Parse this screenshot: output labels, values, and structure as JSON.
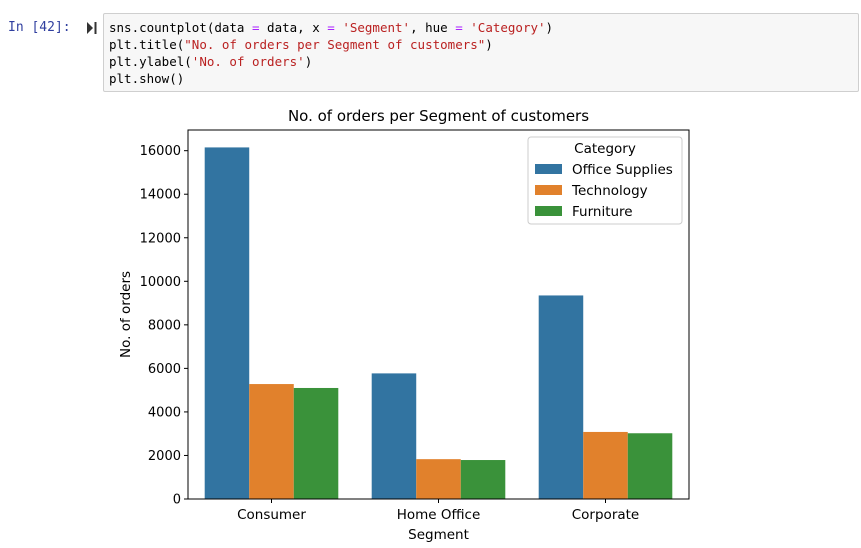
{
  "cell": {
    "prompt": "In [42]:",
    "code_lines": [
      [
        {
          "t": "sns.countplot(data "
        },
        {
          "t": "=",
          "c": "op"
        },
        {
          "t": " data, x "
        },
        {
          "t": "=",
          "c": "op"
        },
        {
          "t": " "
        },
        {
          "t": "'Segment'",
          "c": "str"
        },
        {
          "t": ", hue "
        },
        {
          "t": "=",
          "c": "op"
        },
        {
          "t": " "
        },
        {
          "t": "'Category'",
          "c": "str"
        },
        {
          "t": ")"
        }
      ],
      [
        {
          "t": "plt.title("
        },
        {
          "t": "\"No. of orders per Segment of customers\"",
          "c": "str"
        },
        {
          "t": ")"
        }
      ],
      [
        {
          "t": "plt.ylabel("
        },
        {
          "t": "'No. of orders'",
          "c": "str"
        },
        {
          "t": ")"
        }
      ],
      [
        {
          "t": "plt.show()"
        }
      ]
    ]
  },
  "chart_data": {
    "type": "bar",
    "title": "No. of orders per Segment of customers",
    "xlabel": "Segment",
    "ylabel": "No. of orders",
    "categories": [
      "Consumer",
      "Home Office",
      "Corporate"
    ],
    "series": [
      {
        "name": "Office Supplies",
        "color": "#3274a1",
        "values": [
          16150,
          5770,
          9350
        ]
      },
      {
        "name": "Technology",
        "color": "#e1812c",
        "values": [
          5280,
          1830,
          3080
        ]
      },
      {
        "name": "Furniture",
        "color": "#3a923a",
        "values": [
          5100,
          1790,
          3020
        ]
      }
    ],
    "yticks": [
      0,
      2000,
      4000,
      6000,
      8000,
      10000,
      12000,
      14000,
      16000
    ],
    "ylim": [
      0,
      16950
    ],
    "grid": false,
    "legend": {
      "title": "Category",
      "placement": "top-right"
    }
  }
}
